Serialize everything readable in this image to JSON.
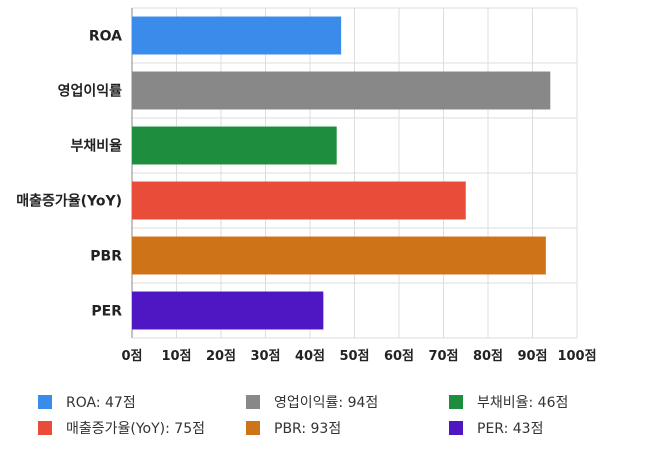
{
  "chart_data": {
    "type": "bar",
    "orientation": "horizontal",
    "categories": [
      "ROA",
      "영업이익률",
      "부채비율",
      "매출증가율(YoY)",
      "PBR",
      "PER"
    ],
    "values": [
      47,
      94,
      46,
      75,
      93,
      43
    ],
    "colors": [
      "#3b8beb",
      "#888888",
      "#1e8e3e",
      "#ea4c3a",
      "#cf7318",
      "#4f17c4"
    ],
    "xlim": [
      0,
      100
    ],
    "x_ticks": [
      0,
      10,
      20,
      30,
      40,
      50,
      60,
      70,
      80,
      90,
      100
    ],
    "tick_suffix": "점",
    "grid": true,
    "legend_position": "bottom"
  },
  "legend": [
    {
      "label": "ROA: 47점",
      "color": "#3b8beb"
    },
    {
      "label": "영업이익률: 94점",
      "color": "#888888"
    },
    {
      "label": "부채비율: 46점",
      "color": "#1e8e3e"
    },
    {
      "label": "매출증가율(YoY): 75점",
      "color": "#ea4c3a"
    },
    {
      "label": "PBR: 93점",
      "color": "#cf7318"
    },
    {
      "label": "PER: 43점",
      "color": "#4f17c4"
    }
  ]
}
